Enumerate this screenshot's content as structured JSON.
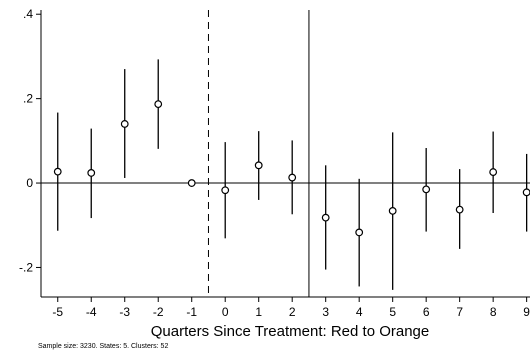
{
  "chart_data": {
    "type": "scatter",
    "subtype": "event-study coefficient plot with confidence intervals",
    "xlabel": "Quarters Since Treatment: Red to Orange",
    "ylabel": "",
    "xlim": [
      -5.5,
      9.1
    ],
    "ylim": [
      -0.27,
      0.41
    ],
    "x_ticks": [
      -5,
      -4,
      -3,
      -2,
      -1,
      0,
      1,
      2,
      3,
      4,
      5,
      6,
      7,
      8,
      9
    ],
    "y_ticks": [
      {
        "value": 0.4,
        "label": ".4"
      },
      {
        "value": 0.2,
        "label": ".2"
      },
      {
        "value": 0,
        "label": "0"
      },
      {
        "value": -0.2,
        "label": "-.2"
      }
    ],
    "grid": false,
    "reference_lines": [
      {
        "axis": "y",
        "value": 0,
        "style": "solid"
      },
      {
        "axis": "x",
        "value": -0.5,
        "style": "dashed"
      },
      {
        "axis": "x",
        "value": 2.5,
        "style": "solid"
      }
    ],
    "points": [
      {
        "x": -5,
        "y": 0.027,
        "lo": -0.113,
        "hi": 0.167
      },
      {
        "x": -4,
        "y": 0.024,
        "lo": -0.083,
        "hi": 0.129
      },
      {
        "x": -3,
        "y": 0.14,
        "lo": 0.012,
        "hi": 0.27
      },
      {
        "x": -2,
        "y": 0.187,
        "lo": 0.081,
        "hi": 0.293
      },
      {
        "x": -1,
        "y": 0.0,
        "lo": 0.0,
        "hi": 0.0
      },
      {
        "x": 0,
        "y": -0.017,
        "lo": -0.131,
        "hi": 0.097
      },
      {
        "x": 1,
        "y": 0.042,
        "lo": -0.04,
        "hi": 0.123
      },
      {
        "x": 2,
        "y": 0.013,
        "lo": -0.074,
        "hi": 0.101
      },
      {
        "x": 3,
        "y": -0.082,
        "lo": -0.205,
        "hi": 0.042
      },
      {
        "x": 4,
        "y": -0.117,
        "lo": -0.245,
        "hi": 0.01
      },
      {
        "x": 5,
        "y": -0.066,
        "lo": -0.253,
        "hi": 0.12
      },
      {
        "x": 6,
        "y": -0.015,
        "lo": -0.115,
        "hi": 0.083
      },
      {
        "x": 7,
        "y": -0.063,
        "lo": -0.156,
        "hi": 0.033
      },
      {
        "x": 8,
        "y": 0.026,
        "lo": -0.071,
        "hi": 0.122
      },
      {
        "x": 9,
        "y": -0.022,
        "lo": -0.115,
        "hi": 0.069
      }
    ],
    "marker": "hollow-circle",
    "colors": {
      "marks": "#000000",
      "background": "#ffffff"
    }
  },
  "note": "Sample size: 3230. States: 5. Clusters: 52"
}
